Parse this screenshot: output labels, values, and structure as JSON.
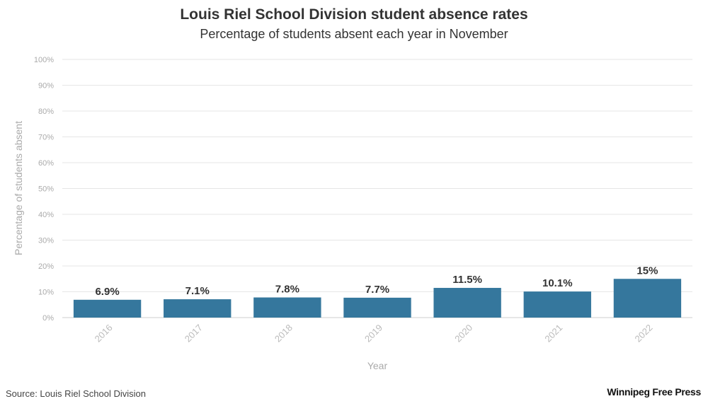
{
  "title": "Louis Riel School Division student absence rates",
  "subtitle": "Percentage of students absent each year in November",
  "source": "Source: Louis Riel School Division",
  "logo": "Winnipeg Free Press",
  "colors": {
    "bar": "#35779d",
    "grid": "#e6e6e6",
    "baseline": "#cccccc"
  },
  "chart_data": {
    "type": "bar",
    "categories": [
      "2016",
      "2017",
      "2018",
      "2019",
      "2020",
      "2021",
      "2022"
    ],
    "values": [
      6.9,
      7.1,
      7.8,
      7.7,
      11.5,
      10.1,
      15
    ],
    "data_labels": [
      "6.9%",
      "7.1%",
      "7.8%",
      "7.7%",
      "11.5%",
      "10.1%",
      "15%"
    ],
    "yticks": [
      0,
      10,
      20,
      30,
      40,
      50,
      60,
      70,
      80,
      90,
      100
    ],
    "ytick_labels": [
      "0%",
      "10%",
      "20%",
      "30%",
      "40%",
      "50%",
      "60%",
      "70%",
      "80%",
      "90%",
      "100%"
    ],
    "ylim": [
      0,
      100
    ],
    "xlabel": "Year",
    "ylabel": "Percentage of students absent",
    "grid": true,
    "legend": "none"
  }
}
